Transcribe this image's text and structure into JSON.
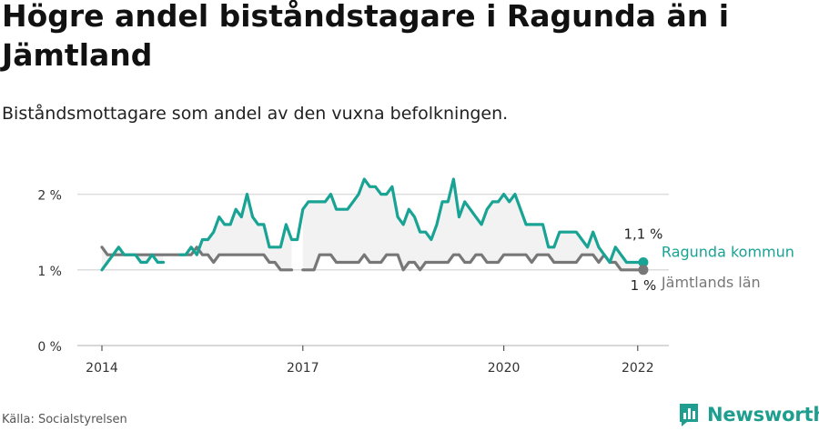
{
  "title": "Högre andel biståndstagare i Ragunda än i Jämtland",
  "subtitle": "Biståndsmottagare som andel av den vuxna befolkningen.",
  "source": "Källa: Socialstyrelsen",
  "brand": "Newsworthy",
  "colors": {
    "ragunda": "#18a394",
    "jamtland": "#777777",
    "fill": "#f2f2f2",
    "grid": "#dddddd"
  },
  "chart_data": {
    "type": "line",
    "ylim": [
      0,
      2.5
    ],
    "y_ticks": [
      {
        "value": 0,
        "label": "0 %"
      },
      {
        "value": 1,
        "label": "1 %"
      },
      {
        "value": 2,
        "label": "2 %"
      }
    ],
    "x_ticks": [
      {
        "value": 2014,
        "label": "2014"
      },
      {
        "value": 2017,
        "label": "2017"
      },
      {
        "value": 2020,
        "label": "2020"
      },
      {
        "value": 2022,
        "label": "2022"
      }
    ],
    "x_start": 2014,
    "x_step": 0.083333,
    "series": [
      {
        "name": "Ragunda kommun",
        "color": "#18a394",
        "end_label": "1,1 %",
        "values": [
          1.0,
          1.1,
          1.2,
          1.3,
          1.2,
          1.2,
          1.2,
          1.1,
          1.1,
          1.2,
          1.1,
          1.1,
          null,
          null,
          1.2,
          1.2,
          1.3,
          1.2,
          1.4,
          1.4,
          1.5,
          1.7,
          1.6,
          1.6,
          1.8,
          1.7,
          2.0,
          1.7,
          1.6,
          1.6,
          1.3,
          1.3,
          1.3,
          1.6,
          1.4,
          1.4,
          1.8,
          1.9,
          1.9,
          1.9,
          1.9,
          2.0,
          1.8,
          1.8,
          1.8,
          1.9,
          2.0,
          2.2,
          2.1,
          2.1,
          2.0,
          2.0,
          2.1,
          1.7,
          1.6,
          1.8,
          1.7,
          1.5,
          1.5,
          1.4,
          1.6,
          1.9,
          1.9,
          2.2,
          1.7,
          1.9,
          1.8,
          1.7,
          1.6,
          1.8,
          1.9,
          1.9,
          2.0,
          1.9,
          2.0,
          1.8,
          1.6,
          1.6,
          1.6,
          1.6,
          1.3,
          1.3,
          1.5,
          1.5,
          1.5,
          1.5,
          1.4,
          1.3,
          1.5,
          1.3,
          1.2,
          1.1,
          1.3,
          1.2,
          1.1,
          1.1,
          1.1,
          1.1
        ]
      },
      {
        "name": "Jämtlands län",
        "color": "#777777",
        "end_label": "1 %",
        "values": [
          1.3,
          1.2,
          1.2,
          1.2,
          1.2,
          1.2,
          1.2,
          1.2,
          1.2,
          1.2,
          1.2,
          1.2,
          1.2,
          1.2,
          1.2,
          1.2,
          1.2,
          1.3,
          1.2,
          1.2,
          1.1,
          1.2,
          1.2,
          1.2,
          1.2,
          1.2,
          1.2,
          1.2,
          1.2,
          1.2,
          1.1,
          1.1,
          1.0,
          1.0,
          1.0,
          null,
          1.0,
          1.0,
          1.0,
          1.2,
          1.2,
          1.2,
          1.1,
          1.1,
          1.1,
          1.1,
          1.1,
          1.2,
          1.1,
          1.1,
          1.1,
          1.2,
          1.2,
          1.2,
          1.0,
          1.1,
          1.1,
          1.0,
          1.1,
          1.1,
          1.1,
          1.1,
          1.1,
          1.2,
          1.2,
          1.1,
          1.1,
          1.2,
          1.2,
          1.1,
          1.1,
          1.1,
          1.2,
          1.2,
          1.2,
          1.2,
          1.2,
          1.1,
          1.2,
          1.2,
          1.2,
          1.1,
          1.1,
          1.1,
          1.1,
          1.1,
          1.2,
          1.2,
          1.2,
          1.1,
          1.2,
          1.1,
          1.1,
          1.0,
          1.0,
          1.0,
          1.0,
          1.0
        ]
      }
    ]
  }
}
